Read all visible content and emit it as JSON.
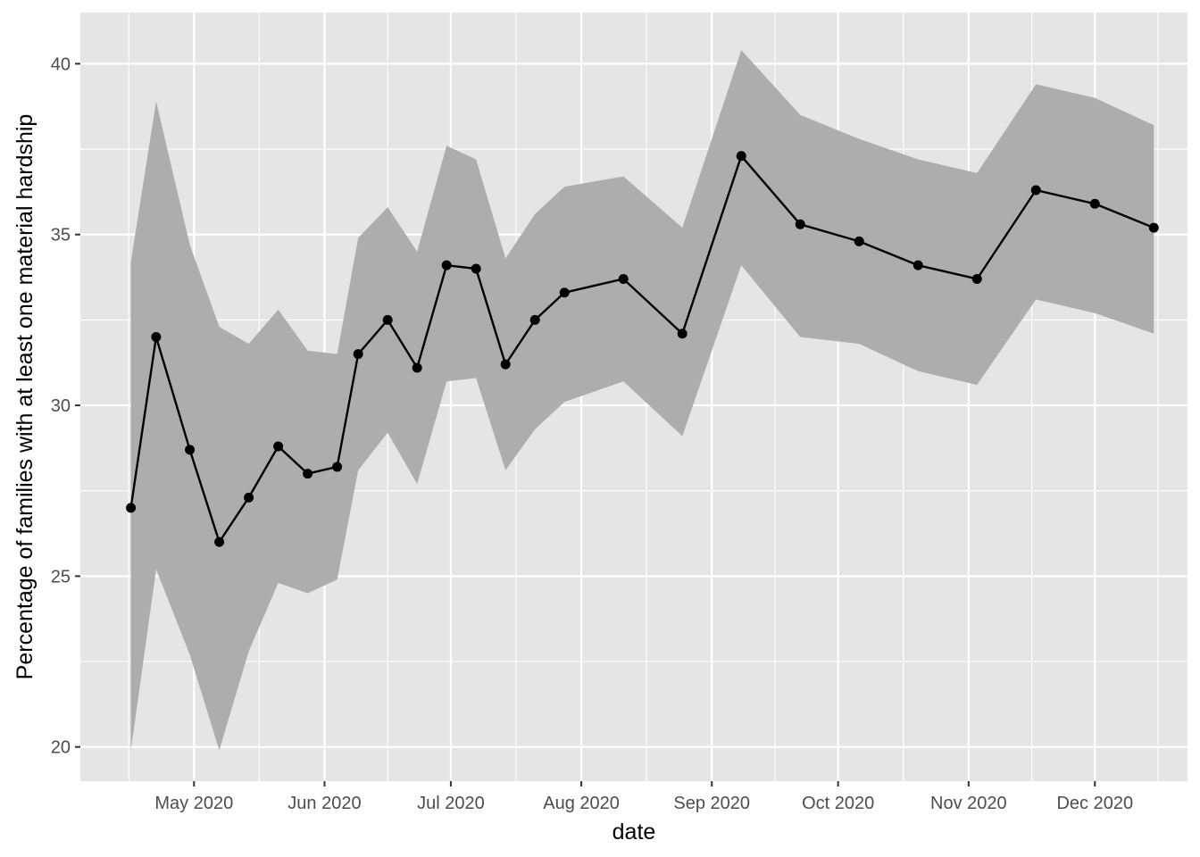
{
  "chart_data": {
    "type": "line",
    "xlabel": "date",
    "ylabel": "Percentage of families with at least one material hardship",
    "ylim": [
      19,
      41.5
    ],
    "xlim": [
      "2020-04-04",
      "2020-12-23"
    ],
    "yticks": [
      20,
      25,
      30,
      35,
      40
    ],
    "xticks": [
      {
        "date": "2020-05-01",
        "label": "May 2020"
      },
      {
        "date": "2020-06-01",
        "label": "Jun 2020"
      },
      {
        "date": "2020-07-01",
        "label": "Jul 2020"
      },
      {
        "date": "2020-08-01",
        "label": "Aug 2020"
      },
      {
        "date": "2020-09-01",
        "label": "Sep 2020"
      },
      {
        "date": "2020-10-01",
        "label": "Oct 2020"
      },
      {
        "date": "2020-11-01",
        "label": "Nov 2020"
      },
      {
        "date": "2020-12-01",
        "label": "Dec 2020"
      }
    ],
    "grid": true,
    "series": [
      {
        "points": [
          {
            "date": "2020-04-16",
            "value": 27.0,
            "lower": 19.9,
            "upper": 34.2
          },
          {
            "date": "2020-04-22",
            "value": 32.0,
            "lower": 25.2,
            "upper": 38.9
          },
          {
            "date": "2020-04-30",
            "value": 28.7,
            "lower": 22.7,
            "upper": 34.7
          },
          {
            "date": "2020-05-07",
            "value": 26.0,
            "lower": 19.9,
            "upper": 32.3
          },
          {
            "date": "2020-05-14",
            "value": 27.3,
            "lower": 22.8,
            "upper": 31.8
          },
          {
            "date": "2020-05-21",
            "value": 28.8,
            "lower": 24.8,
            "upper": 32.8
          },
          {
            "date": "2020-05-28",
            "value": 28.0,
            "lower": 24.5,
            "upper": 31.6
          },
          {
            "date": "2020-06-04",
            "value": 28.2,
            "lower": 24.9,
            "upper": 31.5
          },
          {
            "date": "2020-06-09",
            "value": 31.5,
            "lower": 28.1,
            "upper": 34.9
          },
          {
            "date": "2020-06-16",
            "value": 32.5,
            "lower": 29.2,
            "upper": 35.8
          },
          {
            "date": "2020-06-23",
            "value": 31.1,
            "lower": 27.7,
            "upper": 34.5
          },
          {
            "date": "2020-06-30",
            "value": 34.1,
            "lower": 30.7,
            "upper": 37.6
          },
          {
            "date": "2020-07-07",
            "value": 34.0,
            "lower": 30.8,
            "upper": 37.2
          },
          {
            "date": "2020-07-14",
            "value": 31.2,
            "lower": 28.1,
            "upper": 34.3
          },
          {
            "date": "2020-07-21",
            "value": 32.5,
            "lower": 29.3,
            "upper": 35.6
          },
          {
            "date": "2020-07-28",
            "value": 33.3,
            "lower": 30.1,
            "upper": 36.4
          },
          {
            "date": "2020-08-11",
            "value": 33.7,
            "lower": 30.7,
            "upper": 36.7
          },
          {
            "date": "2020-08-25",
            "value": 32.1,
            "lower": 29.1,
            "upper": 35.2
          },
          {
            "date": "2020-09-08",
            "value": 37.3,
            "lower": 34.1,
            "upper": 40.4
          },
          {
            "date": "2020-09-22",
            "value": 35.3,
            "lower": 32.0,
            "upper": 38.5
          },
          {
            "date": "2020-10-06",
            "value": 34.8,
            "lower": 31.8,
            "upper": 37.8
          },
          {
            "date": "2020-10-20",
            "value": 34.1,
            "lower": 31.0,
            "upper": 37.2
          },
          {
            "date": "2020-11-03",
            "value": 33.7,
            "lower": 30.6,
            "upper": 36.8
          },
          {
            "date": "2020-11-17",
            "value": 36.3,
            "lower": 33.1,
            "upper": 39.4
          },
          {
            "date": "2020-12-01",
            "value": 35.9,
            "lower": 32.7,
            "upper": 39.0
          },
          {
            "date": "2020-12-15",
            "value": 35.2,
            "lower": 32.1,
            "upper": 38.2
          }
        ]
      }
    ],
    "colors": {
      "panel": "#e5e5e5",
      "grid": "#ffffff",
      "ribbon": "#adadad",
      "line": "#000000",
      "point": "#000000"
    }
  }
}
